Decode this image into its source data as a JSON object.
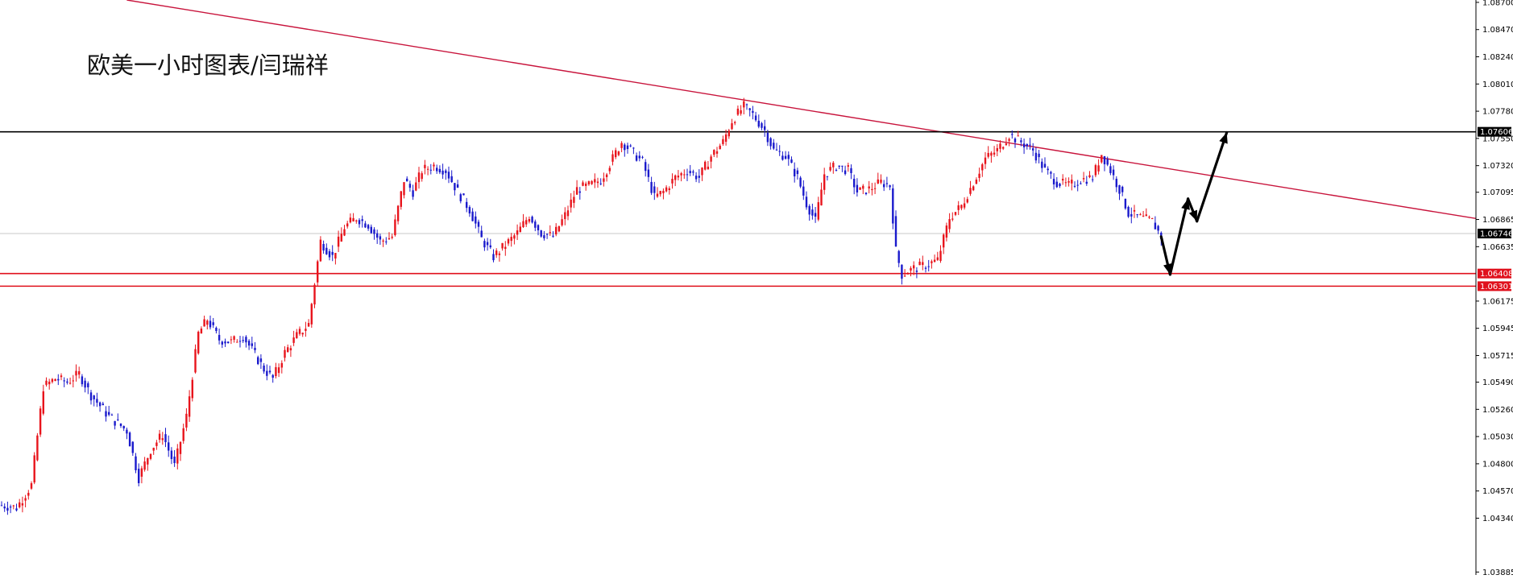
{
  "chart_data": {
    "type": "candlestick",
    "title": "欧美一小时图表/闫瑞祥",
    "y_axis": {
      "position": "right",
      "ticks": [
        {
          "value": 1.087,
          "label": "1.08700"
        },
        {
          "value": 1.0847,
          "label": "1.08470"
        },
        {
          "value": 1.0824,
          "label": "1.08240"
        },
        {
          "value": 1.0801,
          "label": "1.08010"
        },
        {
          "value": 1.0778,
          "label": "1.07780"
        },
        {
          "value": 1.0755,
          "label": "1.07550"
        },
        {
          "value": 1.0732,
          "label": "1.07320"
        },
        {
          "value": 1.07095,
          "label": "1.07095"
        },
        {
          "value": 1.06865,
          "label": "1.06865"
        },
        {
          "value": 1.06635,
          "label": "1.06635"
        },
        {
          "value": 1.06175,
          "label": "1.06175"
        },
        {
          "value": 1.05945,
          "label": "1.05945"
        },
        {
          "value": 1.05715,
          "label": "1.05715"
        },
        {
          "value": 1.0549,
          "label": "1.05490"
        },
        {
          "value": 1.0526,
          "label": "1.05260"
        },
        {
          "value": 1.0503,
          "label": "1.05030"
        },
        {
          "value": 1.048,
          "label": "1.04800"
        },
        {
          "value": 1.0457,
          "label": "1.04570"
        },
        {
          "value": 1.0434,
          "label": "1.04340"
        },
        {
          "value": 1.03885,
          "label": "1.03885"
        }
      ],
      "range": [
        1.0386,
        1.0872
      ]
    },
    "bull_color": "#e8141c",
    "bear_color": "#1a1acc",
    "price_path": [
      {
        "i": 0,
        "p": 1.0445
      },
      {
        "i": 5,
        "p": 1.0443
      },
      {
        "i": 10,
        "p": 1.0462
      },
      {
        "i": 14,
        "p": 1.0545
      },
      {
        "i": 18,
        "p": 1.0552
      },
      {
        "i": 22,
        "p": 1.0549
      },
      {
        "i": 26,
        "p": 1.0556
      },
      {
        "i": 30,
        "p": 1.0538
      },
      {
        "i": 36,
        "p": 1.052
      },
      {
        "i": 42,
        "p": 1.0508
      },
      {
        "i": 46,
        "p": 1.0468
      },
      {
        "i": 50,
        "p": 1.0492
      },
      {
        "i": 54,
        "p": 1.0505
      },
      {
        "i": 58,
        "p": 1.0478
      },
      {
        "i": 62,
        "p": 1.052
      },
      {
        "i": 66,
        "p": 1.059
      },
      {
        "i": 69,
        "p": 1.0602
      },
      {
        "i": 73,
        "p": 1.0585
      },
      {
        "i": 77,
        "p": 1.0583
      },
      {
        "i": 81,
        "p": 1.0588
      },
      {
        "i": 85,
        "p": 1.0572
      },
      {
        "i": 88,
        "p": 1.056
      },
      {
        "i": 91,
        "p": 1.0552
      },
      {
        "i": 95,
        "p": 1.0574
      },
      {
        "i": 99,
        "p": 1.0588
      },
      {
        "i": 103,
        "p": 1.0598
      },
      {
        "i": 107,
        "p": 1.0668
      },
      {
        "i": 111,
        "p": 1.0655
      },
      {
        "i": 115,
        "p": 1.068
      },
      {
        "i": 119,
        "p": 1.0688
      },
      {
        "i": 123,
        "p": 1.0682
      },
      {
        "i": 127,
        "p": 1.0668
      },
      {
        "i": 131,
        "p": 1.0672
      },
      {
        "i": 135,
        "p": 1.072
      },
      {
        "i": 138,
        "p": 1.071
      },
      {
        "i": 141,
        "p": 1.0728
      },
      {
        "i": 145,
        "p": 1.0732
      },
      {
        "i": 149,
        "p": 1.0728
      },
      {
        "i": 153,
        "p": 1.071
      },
      {
        "i": 157,
        "p": 1.0695
      },
      {
        "i": 161,
        "p": 1.067
      },
      {
        "i": 165,
        "p": 1.0655
      },
      {
        "i": 169,
        "p": 1.0665
      },
      {
        "i": 173,
        "p": 1.0675
      },
      {
        "i": 177,
        "p": 1.069
      },
      {
        "i": 181,
        "p": 1.0675
      },
      {
        "i": 185,
        "p": 1.0672
      },
      {
        "i": 189,
        "p": 1.069
      },
      {
        "i": 193,
        "p": 1.0712
      },
      {
        "i": 197,
        "p": 1.0715
      },
      {
        "i": 201,
        "p": 1.072
      },
      {
        "i": 205,
        "p": 1.0738
      },
      {
        "i": 208,
        "p": 1.0752
      },
      {
        "i": 211,
        "p": 1.0745
      },
      {
        "i": 215,
        "p": 1.0735
      },
      {
        "i": 219,
        "p": 1.0705
      },
      {
        "i": 222,
        "p": 1.071
      },
      {
        "i": 226,
        "p": 1.0722
      },
      {
        "i": 230,
        "p": 1.0728
      },
      {
        "i": 234,
        "p": 1.0722
      },
      {
        "i": 238,
        "p": 1.074
      },
      {
        "i": 242,
        "p": 1.0752
      },
      {
        "i": 245,
        "p": 1.077
      },
      {
        "i": 249,
        "p": 1.0782
      },
      {
        "i": 252,
        "p": 1.0775
      },
      {
        "i": 256,
        "p": 1.0762
      },
      {
        "i": 259,
        "p": 1.0745
      },
      {
        "i": 263,
        "p": 1.074
      },
      {
        "i": 267,
        "p": 1.0722
      },
      {
        "i": 270,
        "p": 1.07
      },
      {
        "i": 273,
        "p": 1.0685
      },
      {
        "i": 276,
        "p": 1.0725
      },
      {
        "i": 280,
        "p": 1.0732
      },
      {
        "i": 284,
        "p": 1.0728
      },
      {
        "i": 287,
        "p": 1.071
      },
      {
        "i": 291,
        "p": 1.0712
      },
      {
        "i": 295,
        "p": 1.0718
      },
      {
        "i": 298,
        "p": 1.0715
      },
      {
        "i": 300,
        "p": 1.066
      },
      {
        "i": 302,
        "p": 1.064
      },
      {
        "i": 306,
        "p": 1.0645
      },
      {
        "i": 310,
        "p": 1.0648
      },
      {
        "i": 314,
        "p": 1.0652
      },
      {
        "i": 318,
        "p": 1.0688
      },
      {
        "i": 322,
        "p": 1.0698
      },
      {
        "i": 326,
        "p": 1.0718
      },
      {
        "i": 330,
        "p": 1.0738
      },
      {
        "i": 334,
        "p": 1.0745
      },
      {
        "i": 338,
        "p": 1.0758
      },
      {
        "i": 342,
        "p": 1.0752
      },
      {
        "i": 346,
        "p": 1.0745
      },
      {
        "i": 350,
        "p": 1.0728
      },
      {
        "i": 354,
        "p": 1.0718
      },
      {
        "i": 358,
        "p": 1.0715
      },
      {
        "i": 362,
        "p": 1.072
      },
      {
        "i": 366,
        "p": 1.0722
      },
      {
        "i": 369,
        "p": 1.0742
      },
      {
        "i": 372,
        "p": 1.0728
      },
      {
        "i": 375,
        "p": 1.0712
      },
      {
        "i": 378,
        "p": 1.0692
      },
      {
        "i": 382,
        "p": 1.0688
      },
      {
        "i": 386,
        "p": 1.0685
      },
      {
        "i": 389,
        "p": 1.0672
      }
    ],
    "current_price": {
      "value": 1.06746,
      "label": "1.06746"
    },
    "horizontal_lines": [
      {
        "value": 1.07606,
        "label": "1.07606",
        "color": "#000000"
      },
      {
        "value": 1.06408,
        "label": "1.06408",
        "color": "#e0101c"
      },
      {
        "value": 1.06301,
        "label": "1.06301",
        "color": "#e0101c"
      }
    ],
    "trendline": {
      "color": "#c8143c",
      "points": [
        {
          "i": 42,
          "p": 1.0872
        },
        {
          "i": 390,
          "p": 1.073
        }
      ]
    },
    "forecast_path": {
      "color": "#000000",
      "points": [
        {
          "i": 389,
          "p": 1.0672
        },
        {
          "i": 392,
          "p": 1.064
        },
        {
          "i": 398,
          "p": 1.0704
        },
        {
          "i": 401,
          "p": 1.0685
        },
        {
          "i": 411,
          "p": 1.076
        }
      ]
    },
    "grid": false
  }
}
